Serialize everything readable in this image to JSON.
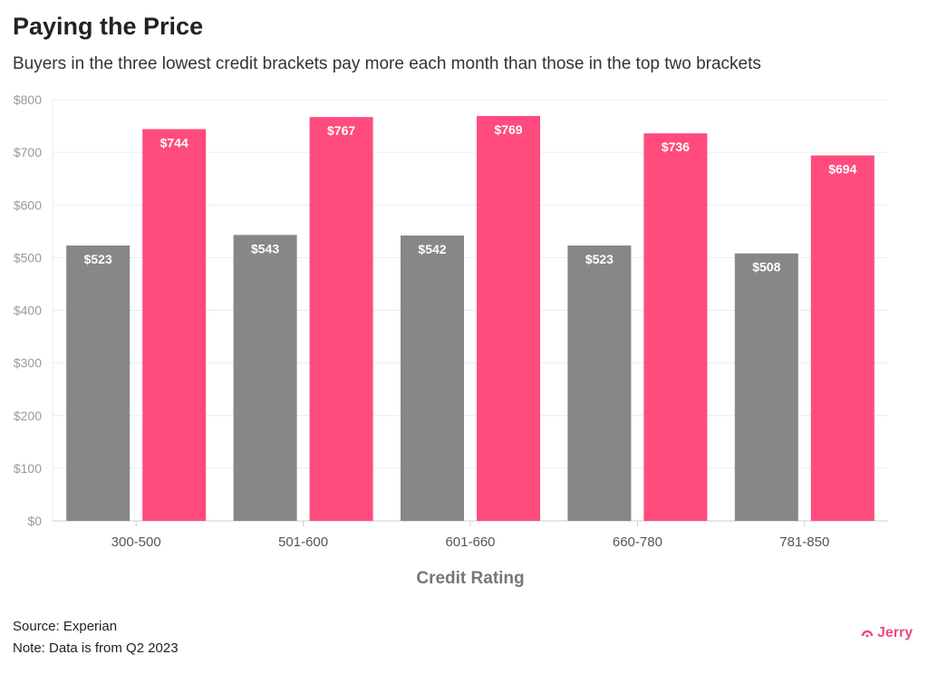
{
  "title": "Paying the Price",
  "subtitle": "Buyers in the three lowest credit brackets pay more each month than those in the top two brackets",
  "source": "Source: Experian",
  "note": "Note: Data is from Q2 2023",
  "logo": "Jerry",
  "colors": {
    "series1": "#878787",
    "series2": "#ff4b7d",
    "logo": "#ee4a7e"
  },
  "chart_data": {
    "type": "bar",
    "xlabel": "Credit Rating",
    "ylabel": "",
    "ylim": [
      0,
      800
    ],
    "yticks": [
      0,
      100,
      200,
      300,
      400,
      500,
      600,
      700,
      800
    ],
    "ytick_labels": [
      "$0",
      "$100",
      "$200",
      "$300",
      "$400",
      "$500",
      "$600",
      "$700",
      "$800"
    ],
    "grid": true,
    "categories": [
      "300-500",
      "501-600",
      "601-660",
      "660-780",
      "781-850"
    ],
    "series": [
      {
        "values": [
          523,
          543,
          542,
          523,
          508
        ],
        "labels": [
          "$523",
          "$543",
          "$542",
          "$523",
          "$508"
        ],
        "color": "#878787"
      },
      {
        "values": [
          744,
          767,
          769,
          736,
          694
        ],
        "labels": [
          "$744",
          "$767",
          "$769",
          "$736",
          "$694"
        ],
        "color": "#ff4b7d"
      }
    ]
  }
}
